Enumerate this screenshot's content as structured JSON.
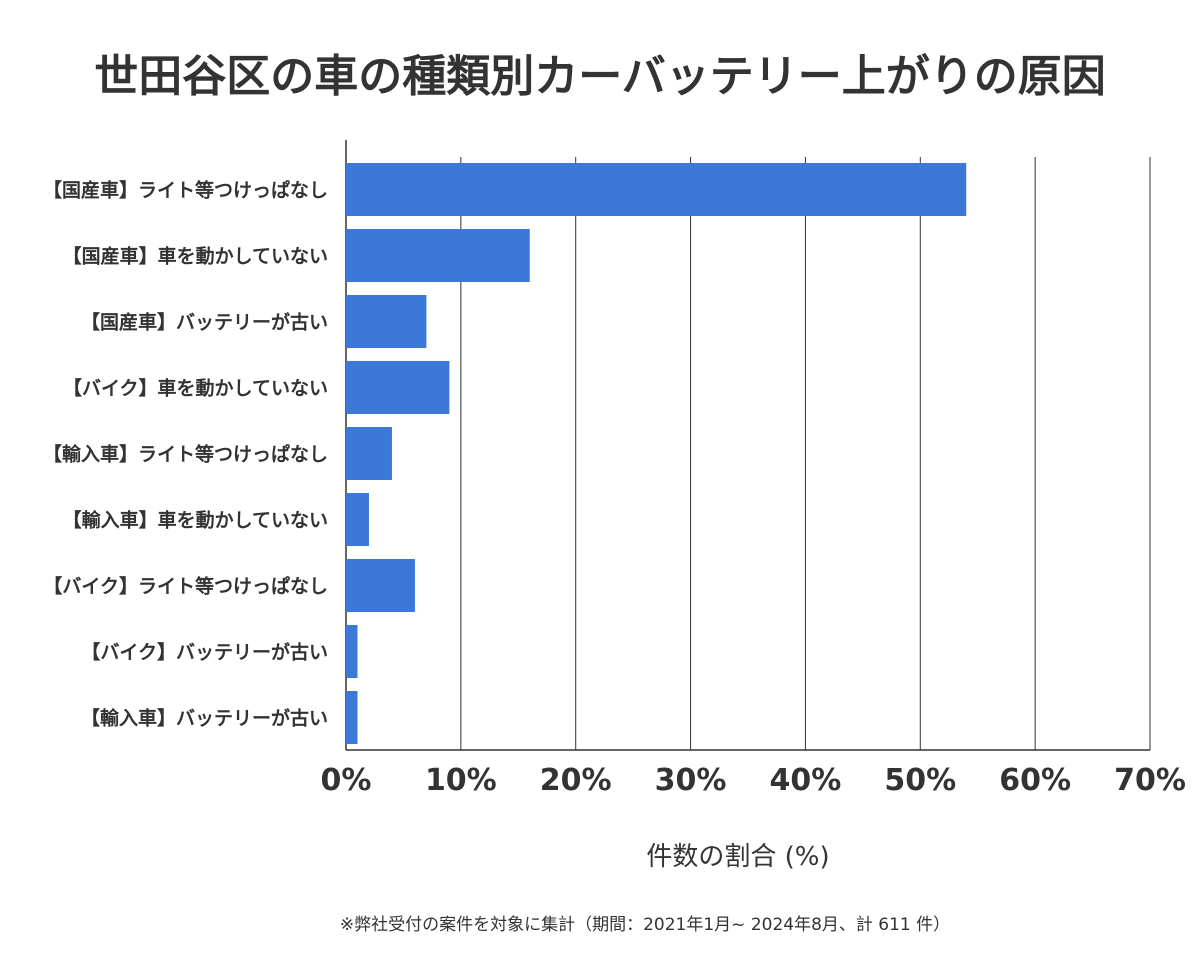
{
  "chart_data": {
    "type": "bar",
    "orientation": "horizontal",
    "title": "世田谷区の車の種類別カーバッテリー上がりの原因",
    "xlabel": "件数の割合 (%)",
    "ylabel": "",
    "categories": [
      "【国産車】ライト等つけっぱなし",
      "【国産車】車を動かしていない",
      "【国産車】バッテリーが古い",
      "【バイク】車を動かしていない",
      "【輸入車】ライト等つけっぱなし",
      "【輸入車】車を動かしていない",
      "【バイク】ライト等つけっぱなし",
      "【バイク】バッテリーが古い",
      "【輸入車】バッテリーが古い"
    ],
    "values": [
      54,
      16,
      7,
      9,
      4,
      2,
      6,
      1,
      1
    ],
    "xlim": [
      0,
      70
    ],
    "xticks": [
      "0%",
      "10%",
      "20%",
      "30%",
      "40%",
      "50%",
      "60%",
      "70%"
    ],
    "grid": "vertical",
    "bar_color": "#3c78d8",
    "note": "※弊社受付の案件を対象に集計（期間：2021年1月~ 2024年8月、計 611 件）"
  }
}
